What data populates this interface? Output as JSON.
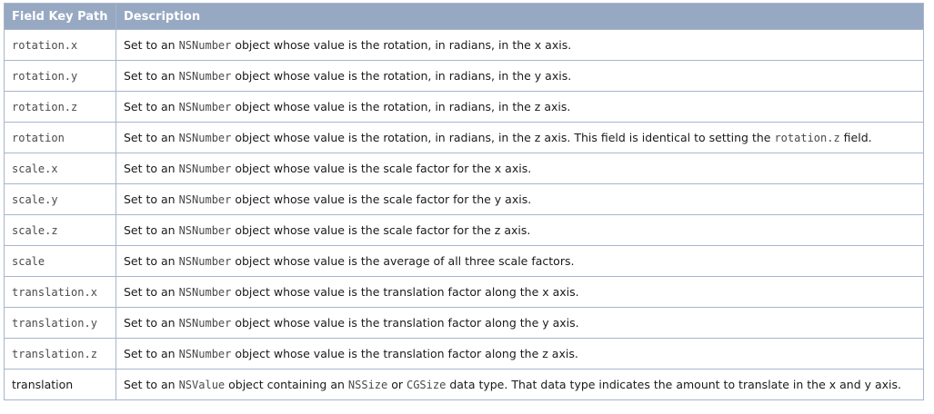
{
  "table": {
    "headers": [
      "Field Key Path",
      "Description"
    ],
    "rows": [
      {
        "key": "rotation.x",
        "mono": true,
        "parts": [
          {
            "t": "Set to an "
          },
          {
            "t": "NSNumber",
            "code": true
          },
          {
            "t": " object whose value is the rotation, in radians, in the x axis."
          }
        ]
      },
      {
        "key": "rotation.y",
        "mono": true,
        "parts": [
          {
            "t": "Set to an "
          },
          {
            "t": "NSNumber",
            "code": true
          },
          {
            "t": " object whose value is the rotation, in radians, in the y axis."
          }
        ]
      },
      {
        "key": "rotation.z",
        "mono": true,
        "parts": [
          {
            "t": "Set to an "
          },
          {
            "t": "NSNumber",
            "code": true
          },
          {
            "t": " object whose value is the rotation, in radians, in the z axis."
          }
        ]
      },
      {
        "key": "rotation",
        "mono": true,
        "parts": [
          {
            "t": "Set to an "
          },
          {
            "t": "NSNumber",
            "code": true
          },
          {
            "t": " object whose value is the rotation, in radians, in the z axis. This field is identical to setting the "
          },
          {
            "t": "rotation.z",
            "code": true
          },
          {
            "t": " field."
          }
        ]
      },
      {
        "key": "scale.x",
        "mono": true,
        "parts": [
          {
            "t": "Set to an "
          },
          {
            "t": "NSNumber",
            "code": true
          },
          {
            "t": " object whose value is the scale factor for the x axis."
          }
        ]
      },
      {
        "key": "scale.y",
        "mono": true,
        "parts": [
          {
            "t": "Set to an "
          },
          {
            "t": "NSNumber",
            "code": true
          },
          {
            "t": " object whose value is the scale factor for the y axis."
          }
        ]
      },
      {
        "key": "scale.z",
        "mono": true,
        "parts": [
          {
            "t": "Set to an "
          },
          {
            "t": "NSNumber",
            "code": true
          },
          {
            "t": " object whose value is the scale factor for the z axis."
          }
        ]
      },
      {
        "key": "scale",
        "mono": true,
        "parts": [
          {
            "t": "Set to an "
          },
          {
            "t": "NSNumber",
            "code": true
          },
          {
            "t": " object whose value is the average of all three scale factors."
          }
        ]
      },
      {
        "key": "translation.x",
        "mono": true,
        "parts": [
          {
            "t": "Set to an "
          },
          {
            "t": "NSNumber",
            "code": true
          },
          {
            "t": " object whose value is the translation factor along the x axis."
          }
        ]
      },
      {
        "key": "translation.y",
        "mono": true,
        "parts": [
          {
            "t": "Set to an "
          },
          {
            "t": "NSNumber",
            "code": true
          },
          {
            "t": " object whose value is the translation factor along the y axis."
          }
        ]
      },
      {
        "key": "translation.z",
        "mono": true,
        "parts": [
          {
            "t": "Set to an "
          },
          {
            "t": "NSNumber",
            "code": true
          },
          {
            "t": " object whose value is the translation factor along the z axis."
          }
        ]
      },
      {
        "key": "translation",
        "mono": false,
        "parts": [
          {
            "t": "Set to an "
          },
          {
            "t": "NSValue",
            "code": true
          },
          {
            "t": " object containing an "
          },
          {
            "t": "NSSize",
            "code": true
          },
          {
            "t": " or "
          },
          {
            "t": "CGSize",
            "code": true
          },
          {
            "t": " data type. That data type indicates the amount to translate in the x and y axis."
          }
        ]
      }
    ]
  }
}
